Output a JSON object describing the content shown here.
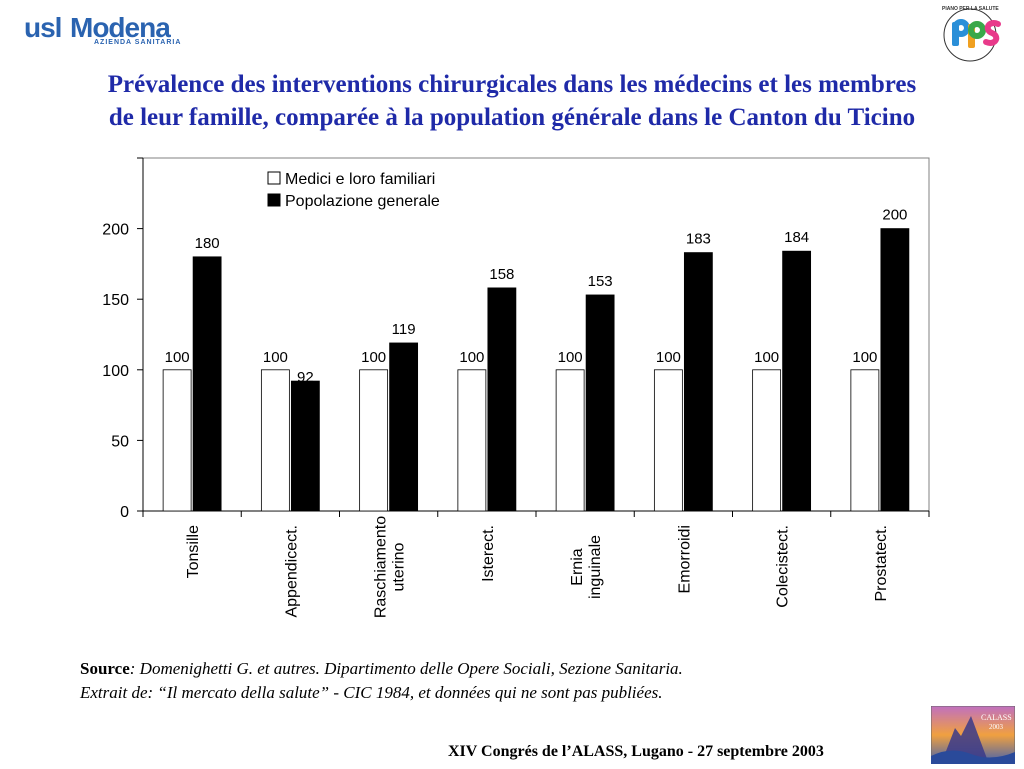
{
  "header": {
    "logo_left_part1": "usl",
    "logo_left_part2": "Modena",
    "logo_left_sub": "AZIENDA SANITARIA",
    "logo_right_text": "PPS",
    "logo_right_caption": "PIANO PER LA SALUTE"
  },
  "title": {
    "line1": "Prévalence des interventions chirurgicales dans les médecins et les membres",
    "line2": "de leur famille, comparée à la population générale dans le Canton du Ticino"
  },
  "chart_data": {
    "type": "bar",
    "title": "",
    "xlabel": "",
    "ylabel": "",
    "ylim": [
      0,
      250
    ],
    "yticks": [
      0,
      50,
      100,
      150,
      200
    ],
    "categories": [
      [
        "Tonsille"
      ],
      [
        "Appendicect."
      ],
      [
        "Raschiamento",
        "uterino"
      ],
      [
        "Isterect."
      ],
      [
        "Ernia",
        "inguinale"
      ],
      [
        "Emorroidi"
      ],
      [
        "Colecistect."
      ],
      [
        "Prostatect."
      ]
    ],
    "series": [
      {
        "name": "Medici e loro familiari",
        "color": "#ffffff",
        "values": [
          100,
          100,
          100,
          100,
          100,
          100,
          100,
          100
        ]
      },
      {
        "name": "Popolazione generale",
        "color": "#000000",
        "values": [
          180,
          92,
          119,
          158,
          153,
          183,
          184,
          200
        ]
      }
    ],
    "legend_position": "top-center",
    "grid": false,
    "data_labels": true
  },
  "source": {
    "label": "Source",
    "line1": ": Domenighetti G. et autres. Dipartimento delle Opere Sociali, Sezione Sanitaria.",
    "line2": "Extrait de: “Il mercato della salute” - CIC 1984, et données qui ne sont pas publiées",
    "end": "."
  },
  "footer": {
    "text": "XIV Congrés de l’ALASS, Lugano - 27 septembre 2003"
  },
  "conference_logo": {
    "text1": "CALASS",
    "text2": "2003"
  }
}
